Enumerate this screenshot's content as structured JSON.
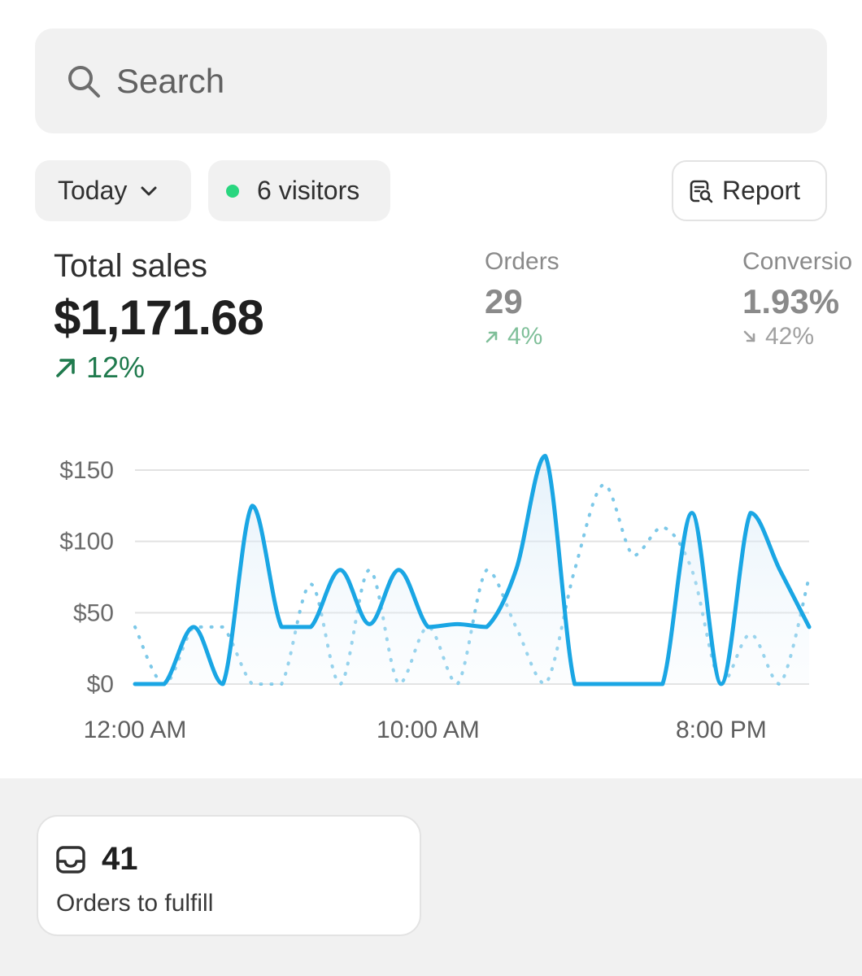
{
  "search": {
    "placeholder": "Search",
    "icon": "search-icon"
  },
  "filters": {
    "date_label": "Today",
    "visitors_label": "6 visitors",
    "visitors_dot_color": "#29d67f",
    "report_label": "Report"
  },
  "metrics": {
    "total_sales": {
      "label": "Total sales",
      "value": "$1,171.68",
      "delta": "12%",
      "trend": "up"
    },
    "orders": {
      "label": "Orders",
      "value": "29",
      "delta": "4%",
      "trend": "up"
    },
    "conversion": {
      "label": "Conversio",
      "value": "1.93%",
      "delta": "42%",
      "trend": "down"
    }
  },
  "chart_data": {
    "type": "line",
    "y_ticks": [
      "$150",
      "$100",
      "$50",
      "$0"
    ],
    "ylim": [
      0,
      150
    ],
    "x_ticks": [
      "12:00 AM",
      "10:00 AM",
      "8:00 PM"
    ],
    "x_hours": [
      0,
      10,
      20
    ],
    "grid": true,
    "colors": {
      "primary": "#1aa6e4",
      "comparison": "#7cc8e8"
    },
    "series": [
      {
        "style": "solid",
        "points": [
          [
            0,
            0
          ],
          [
            1,
            0
          ],
          [
            2,
            40
          ],
          [
            3,
            0
          ],
          [
            4,
            125
          ],
          [
            5,
            40
          ],
          [
            6,
            40
          ],
          [
            7,
            80
          ],
          [
            8,
            42
          ],
          [
            9,
            80
          ],
          [
            10,
            40
          ],
          [
            11,
            42
          ],
          [
            12,
            40
          ],
          [
            13,
            80
          ],
          [
            14,
            160
          ],
          [
            15,
            0
          ],
          [
            16,
            0
          ],
          [
            17,
            0
          ],
          [
            18,
            0
          ],
          [
            19,
            120
          ],
          [
            20,
            0
          ],
          [
            21,
            120
          ],
          [
            22,
            80
          ],
          [
            23,
            40
          ]
        ]
      },
      {
        "style": "dotted",
        "points": [
          [
            0,
            40
          ],
          [
            1,
            0
          ],
          [
            2,
            40
          ],
          [
            3,
            40
          ],
          [
            4,
            0
          ],
          [
            5,
            0
          ],
          [
            6,
            70
          ],
          [
            7,
            0
          ],
          [
            8,
            80
          ],
          [
            9,
            0
          ],
          [
            10,
            40
          ],
          [
            11,
            0
          ],
          [
            12,
            80
          ],
          [
            13,
            40
          ],
          [
            14,
            0
          ],
          [
            15,
            80
          ],
          [
            16,
            140
          ],
          [
            17,
            90
          ],
          [
            18,
            110
          ],
          [
            19,
            80
          ],
          [
            20,
            0
          ],
          [
            21,
            35
          ],
          [
            22,
            0
          ],
          [
            23,
            75
          ]
        ]
      }
    ]
  },
  "fulfill": {
    "count": "41",
    "label": "Orders to fulfill",
    "icon": "inbox-icon"
  }
}
